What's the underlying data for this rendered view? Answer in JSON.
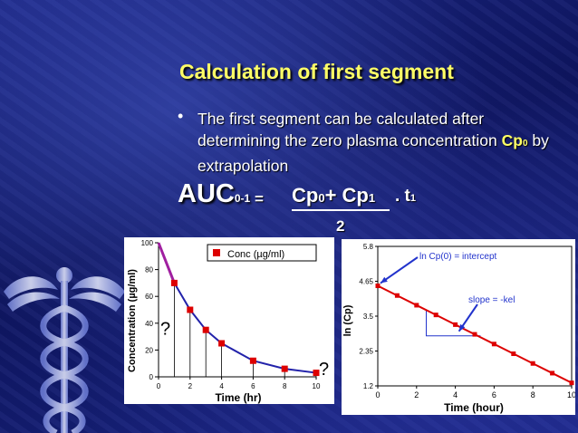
{
  "slide": {
    "title": "Calculation of first segment",
    "bullet": "The first segment can be calculated after determining the zero plasma concentration",
    "cp_label": "Cp",
    "cp_sub": "0",
    "bullet_end": "  by extrapolation",
    "formula": {
      "auc": "AUC",
      "auc_sub": "0-1",
      "equals": "=",
      "num_a": "Cp",
      "num_a_sub": "0",
      "plus": "+ ",
      "num_b": "Cp",
      "num_b_sub": "1",
      "times": ". t",
      "t_sub": "1",
      "denominator": "2"
    }
  },
  "colors": {
    "title": "#ffff66",
    "bg": "#131c74",
    "marker": "#dd0000",
    "line": "#2222aa"
  },
  "chart_data": [
    {
      "type": "line",
      "legend": "Conc (µg/ml)",
      "ylabel": "Concentration (µg/ml)",
      "xlabel": "Time (hr)",
      "x": [
        1,
        2,
        3,
        4,
        6,
        8,
        10
      ],
      "y": [
        70,
        50,
        35,
        25,
        12,
        6,
        3
      ],
      "extrapolated_start": [
        0,
        100
      ],
      "xlim": [
        0,
        10
      ],
      "ylim": [
        0,
        100
      ],
      "xticks": [
        0,
        2,
        4,
        6,
        8,
        10
      ],
      "yticks": [
        0,
        20,
        40,
        60,
        80,
        100
      ],
      "question_marks": [
        "?",
        "?"
      ]
    },
    {
      "type": "line",
      "ylabel": "ln (Cp)",
      "xlabel": "Time (hour)",
      "x": [
        0,
        1,
        2,
        3,
        4,
        5,
        6,
        7,
        8,
        9,
        10
      ],
      "y": [
        4.5,
        4.18,
        3.86,
        3.54,
        3.22,
        2.9,
        2.58,
        2.26,
        1.94,
        1.62,
        1.3
      ],
      "xlim": [
        0,
        10
      ],
      "ylim": [
        1.2,
        5.8
      ],
      "xticks": [
        "0",
        "2",
        "4",
        "6",
        "8",
        "10"
      ],
      "yticks": [
        "1.2",
        "2.35",
        "3.5",
        "4.65",
        "5.8"
      ],
      "annotations": [
        "ln Cp(0) = intercept",
        "slope = -kel"
      ]
    }
  ]
}
